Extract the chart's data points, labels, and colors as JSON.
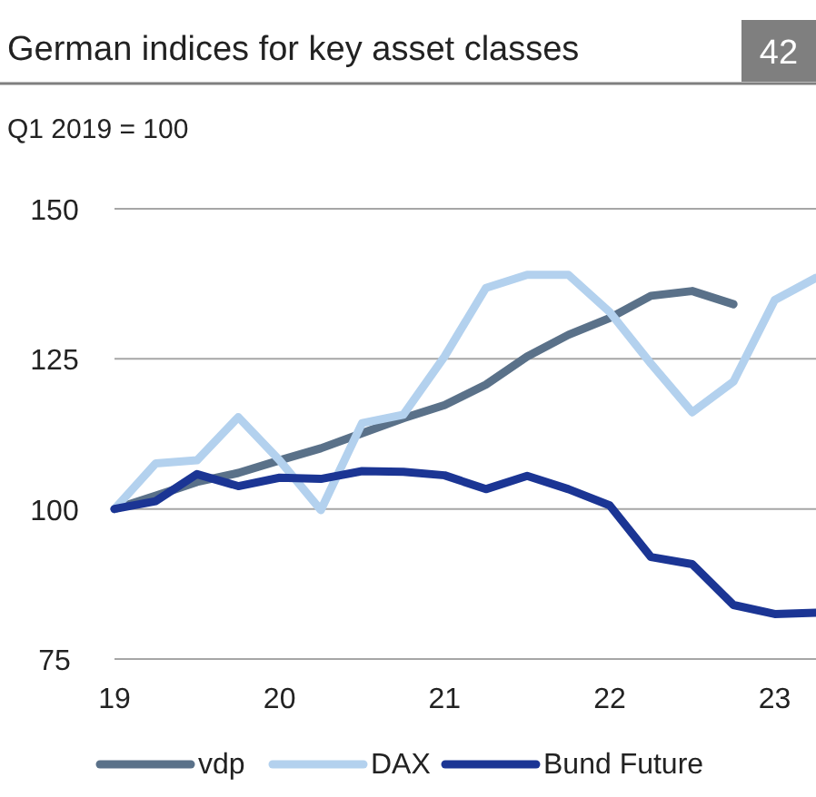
{
  "chart_data": {
    "type": "line",
    "title": "German indices for key asset classes",
    "subtitle": "Q1 2019 = 100",
    "annotations": [
      "42"
    ],
    "x": [
      19,
      19.25,
      19.5,
      19.75,
      20,
      20.25,
      20.5,
      20.75,
      21,
      21.25,
      21.5,
      21.75,
      22,
      22.25,
      22.5,
      22.75,
      23,
      23.25
    ],
    "series": [
      {
        "name": "vdp",
        "color": "#5a7189",
        "values": [
          100,
          102.2,
          104.5,
          106,
          108.1,
          110.1,
          112.6,
          115.1,
          117.3,
          120.7,
          125.4,
          129,
          131.8,
          135.5,
          136.3,
          134.1,
          null,
          null
        ]
      },
      {
        "name": "DAX",
        "color": "#b3d1ee",
        "values": [
          100,
          107.6,
          108.1,
          115.3,
          108.1,
          99.8,
          114.3,
          115.7,
          125.4,
          136.8,
          139,
          139,
          132.8,
          124.2,
          116.1,
          121.2,
          134.8,
          138.5
        ]
      },
      {
        "name": "Bund Future",
        "color": "#1b3594",
        "values": [
          100,
          101.3,
          105.8,
          103.8,
          105.2,
          105,
          106.3,
          106.2,
          105.6,
          103.3,
          105.5,
          103.3,
          100.6,
          92,
          90.8,
          84,
          82.5,
          82.7
        ]
      }
    ],
    "xlim": [
      19,
      23.25
    ],
    "xticks": [
      19,
      20,
      21,
      22,
      23
    ],
    "ylim": [
      75,
      150
    ],
    "yticks": [
      75,
      100,
      125,
      150
    ],
    "grid": "y",
    "legend": "bottom",
    "marker": "none",
    "line_style": "solid"
  }
}
